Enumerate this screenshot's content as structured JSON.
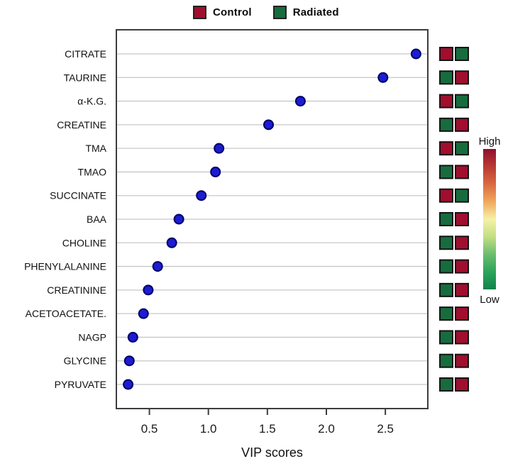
{
  "legend": {
    "items": [
      {
        "label": "Control",
        "color": "#a10e2e"
      },
      {
        "label": "Radiated",
        "color": "#176c3d"
      }
    ]
  },
  "colorbar": {
    "high_label": "High",
    "low_label": "Low",
    "gradient_stops": [
      "#8f0e2f",
      "#b93a32",
      "#d96a41",
      "#f0a85c",
      "#f6f1a7",
      "#c3df83",
      "#6cbd6f",
      "#2ba45c",
      "#12834a"
    ]
  },
  "chart_data": {
    "type": "scatter",
    "title": "",
    "xlabel": "VIP scores",
    "ylabel": "",
    "categories": [
      "CITRATE",
      "TAURINE",
      "α-K.G.",
      "CREATINE",
      "TMA",
      "TMAO",
      "SUCCINATE",
      "BAA",
      "CHOLINE",
      "PHENYLALANINE",
      "CREATININE",
      "ACETOACETATE.",
      "NAGP",
      "GLYCINE",
      "PYRUVATE"
    ],
    "values": [
      2.76,
      2.48,
      1.78,
      1.51,
      1.09,
      1.06,
      0.94,
      0.75,
      0.69,
      0.57,
      0.49,
      0.45,
      0.36,
      0.33,
      0.32
    ],
    "xticks": [
      0.5,
      1.0,
      1.5,
      2.0,
      2.5
    ],
    "xtick_labels": [
      "0.5",
      "1.0",
      "1.5",
      "2.0",
      "2.5"
    ],
    "xlim": [
      0.22,
      2.86
    ],
    "grid": "horizontal-per-category",
    "legend_position": "top",
    "dot_color": "#1c1cd2",
    "dot_border": "#000066",
    "gridline_color": "#c8c8c8",
    "border_color": "#3d3d3d",
    "heatmap": {
      "columns": [
        "Control",
        "Radiated"
      ],
      "levels": {
        "high": "#a10e2e",
        "low": "#176c3d"
      },
      "rows": [
        [
          "high",
          "low"
        ],
        [
          "low",
          "high"
        ],
        [
          "high",
          "low"
        ],
        [
          "low",
          "high"
        ],
        [
          "high",
          "low"
        ],
        [
          "low",
          "high"
        ],
        [
          "high",
          "low"
        ],
        [
          "low",
          "high"
        ],
        [
          "low",
          "high"
        ],
        [
          "low",
          "high"
        ],
        [
          "low",
          "high"
        ],
        [
          "low",
          "high"
        ],
        [
          "low",
          "high"
        ],
        [
          "low",
          "high"
        ],
        [
          "low",
          "high"
        ]
      ]
    }
  }
}
